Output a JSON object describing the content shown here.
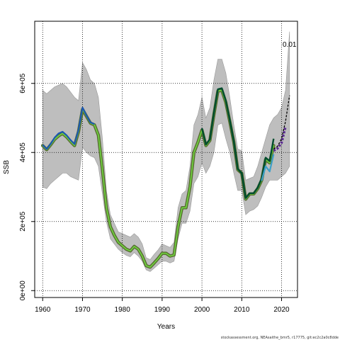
{
  "chart_data": {
    "type": "line",
    "title": "",
    "xlabel": "Years",
    "ylabel": "SSB",
    "xlim": [
      1958,
      2024
    ],
    "ylim": [
      -20000,
      780000
    ],
    "x_ticks": [
      1960,
      1970,
      1980,
      1990,
      2000,
      2010,
      2020
    ],
    "y_ticks": [
      0,
      200000,
      400000,
      600000
    ],
    "y_tick_labels": [
      "0e+00",
      "2e+05",
      "4e+05",
      "6e+05"
    ],
    "grid": true,
    "annotation": "0.01",
    "source_text": "stockassessment.org, NEAsaithe_bmr5, r17775, git:ec2c2a0c8dde",
    "colors": {
      "band": "#bebebe",
      "band_edge": "#999999",
      "main": "#556b2f",
      "retro1": "#6fcf3f",
      "retro2": "#2e9e5b",
      "retro3": "#3ea0c8",
      "retro4": "#1c58b0",
      "retro5": "#004c2e",
      "forecast": "#5c2d91",
      "forecast_line": "#000000"
    },
    "band": {
      "years": [
        1960,
        1961,
        1962,
        1963,
        1964,
        1965,
        1966,
        1967,
        1968,
        1969,
        1970,
        1971,
        1972,
        1973,
        1974,
        1975,
        1976,
        1977,
        1978,
        1979,
        1980,
        1981,
        1982,
        1983,
        1984,
        1985,
        1986,
        1987,
        1988,
        1989,
        1990,
        1991,
        1992,
        1993,
        1994,
        1995,
        1996,
        1997,
        1998,
        1999,
        2000,
        2001,
        2002,
        2003,
        2004,
        2005,
        2006,
        2007,
        2008,
        2009,
        2010,
        2011,
        2012,
        2013,
        2014,
        2015,
        2016,
        2017,
        2018,
        2019,
        2020,
        2021,
        2022
      ],
      "lower": [
        300000,
        295000,
        310000,
        320000,
        330000,
        340000,
        340000,
        330000,
        325000,
        320000,
        415000,
        400000,
        390000,
        385000,
        360000,
        280000,
        200000,
        150000,
        135000,
        120000,
        110000,
        102000,
        98000,
        110000,
        100000,
        85000,
        60000,
        55000,
        65000,
        75000,
        85000,
        85000,
        80000,
        85000,
        150000,
        195000,
        195000,
        230000,
        310000,
        330000,
        370000,
        340000,
        360000,
        400000,
        480000,
        485000,
        440000,
        400000,
        340000,
        290000,
        290000,
        220000,
        230000,
        235000,
        245000,
        270000,
        300000,
        320000,
        320000,
        320000,
        330000,
        340000,
        360000
      ],
      "upper": [
        580000,
        570000,
        580000,
        590000,
        595000,
        600000,
        590000,
        575000,
        560000,
        550000,
        660000,
        640000,
        610000,
        600000,
        560000,
        440000,
        290000,
        220000,
        195000,
        170000,
        165000,
        160000,
        155000,
        165000,
        155000,
        135000,
        95000,
        90000,
        105000,
        118000,
        135000,
        130000,
        125000,
        140000,
        240000,
        280000,
        290000,
        360000,
        480000,
        510000,
        560000,
        500000,
        530000,
        610000,
        670000,
        670000,
        630000,
        560000,
        480000,
        410000,
        405000,
        320000,
        325000,
        330000,
        360000,
        400000,
        440000,
        480000,
        500000,
        510000,
        530000,
        580000,
        750000
      ]
    },
    "series": [
      {
        "name": "",
        "role": "main",
        "x": [
          1960,
          1961,
          1962,
          1963,
          1964,
          1965,
          1966,
          1967,
          1968,
          1969,
          1970,
          1971,
          1972,
          1973,
          1974,
          1975,
          1976,
          1977,
          1978,
          1979,
          1980,
          1981,
          1982,
          1983,
          1984,
          1985,
          1986,
          1987,
          1988,
          1989,
          1990,
          1991,
          1992,
          1993,
          1994,
          1995,
          1996,
          1997,
          1998,
          1999,
          2000,
          2001,
          2002,
          2003,
          2004,
          2005,
          2006,
          2007,
          2008,
          2009,
          2010,
          2011,
          2012,
          2013,
          2014,
          2015,
          2016,
          2017,
          2018
        ],
        "y": [
          420000,
          408000,
          422000,
          438000,
          448000,
          455000,
          445000,
          432000,
          420000,
          460000,
          525000,
          505000,
          485000,
          480000,
          450000,
          350000,
          240000,
          185000,
          160000,
          140000,
          130000,
          120000,
          115000,
          128000,
          120000,
          100000,
          72000,
          68000,
          80000,
          93000,
          108000,
          108000,
          100000,
          103000,
          185000,
          240000,
          240000,
          300000,
          400000,
          430000,
          465000,
          420000,
          435000,
          510000,
          578000,
          580000,
          545000,
          490000,
          430000,
          350000,
          340000,
          265000,
          280000,
          280000,
          295000,
          320000,
          380000,
          370000,
          420000
        ]
      },
      {
        "name": "",
        "role": "retro4",
        "x": [
          1960,
          1961,
          1962,
          1963,
          1964,
          1965,
          1966,
          1967,
          1968,
          1969,
          1970,
          1971,
          1972,
          1973
        ],
        "y": [
          422000,
          410000,
          425000,
          443000,
          455000,
          460000,
          450000,
          436000,
          424000,
          465000,
          530000,
          507000,
          487000,
          482000
        ]
      },
      {
        "name": "",
        "role": "retro5",
        "x": [
          2000,
          2001,
          2002,
          2003,
          2004,
          2005,
          2006,
          2007,
          2008,
          2009,
          2010,
          2011,
          2012,
          2013,
          2014,
          2015,
          2016,
          2017,
          2018
        ],
        "y": [
          470000,
          423000,
          438000,
          515000,
          583000,
          586000,
          550000,
          494000,
          432000,
          352000,
          340000,
          268000,
          282000,
          282000,
          298000,
          325000,
          385000,
          375000,
          440000
        ]
      },
      {
        "name": "",
        "role": "retro3",
        "x": [
          2015,
          2016,
          2017,
          2018
        ],
        "y": [
          318000,
          360000,
          345000,
          395000
        ]
      },
      {
        "name": "",
        "role": "forecast",
        "x": [
          2018,
          2019,
          2020,
          2021
        ],
        "y": [
          405000,
          412000,
          428000,
          475000
        ]
      },
      {
        "name": "",
        "role": "forecast_line",
        "x": [
          2018,
          2019,
          2020,
          2021,
          2022
        ],
        "y": [
          410000,
          418000,
          440000,
          490000,
          565000
        ]
      }
    ]
  }
}
